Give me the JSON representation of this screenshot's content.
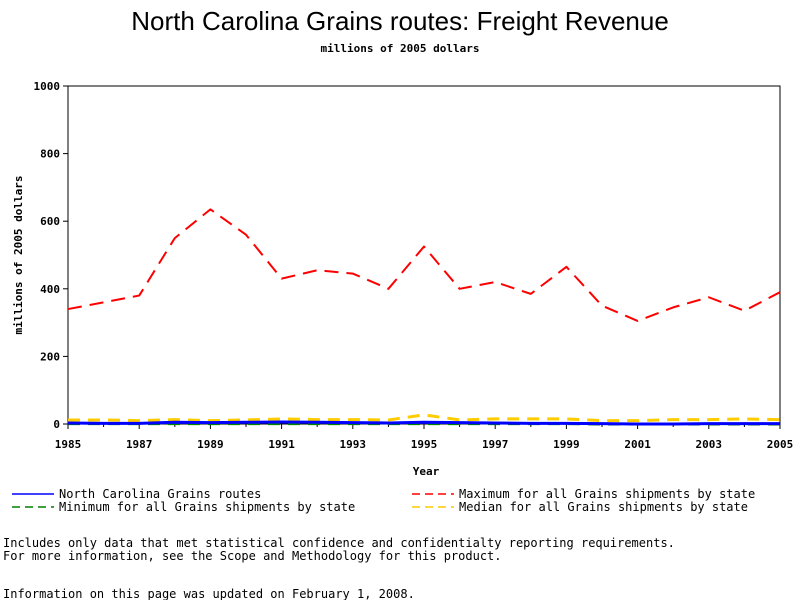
{
  "page": {
    "title": "North Carolina Grains routes: Freight Revenue",
    "subtitle": "millions of 2005 dollars",
    "footnote_line1": "Includes only data that met statistical confidence and confidentialty reporting requirements.",
    "footnote_line2": "For more information, see the Scope and Methodology for this product.",
    "updated": "Information on this page was updated on February 1, 2008."
  },
  "chart_data": {
    "type": "line",
    "title": "North Carolina Grains routes: Freight Revenue",
    "subtitle": "millions of 2005 dollars",
    "xlabel": "Year",
    "ylabel": "millions of 2005 dollars",
    "xlim": [
      1985,
      2005
    ],
    "ylim": [
      0,
      1000
    ],
    "x_ticks": [
      "1985",
      "1987",
      "1989",
      "1991",
      "1993",
      "1995",
      "1997",
      "1999",
      "2001",
      "2003",
      "2005"
    ],
    "y_ticks": [
      "0",
      "200",
      "400",
      "600",
      "800",
      "1000"
    ],
    "grid": false,
    "legend_position": "bottom",
    "x": [
      1985,
      1986,
      1987,
      1988,
      1989,
      1990,
      1991,
      1992,
      1993,
      1994,
      1995,
      1996,
      1997,
      1998,
      1999,
      2000,
      2001,
      2002,
      2003,
      2004,
      2005
    ],
    "series": [
      {
        "name": "North Carolina Grains routes",
        "color": "#0000ff",
        "style": "solid",
        "values": [
          3,
          2,
          2,
          5,
          4,
          5,
          6,
          5,
          4,
          3,
          5,
          4,
          3,
          2,
          2,
          1,
          0,
          0,
          1,
          1,
          1
        ]
      },
      {
        "name": "Maximum for all Grains shipments by state",
        "color": "#ff0000",
        "style": "dashed",
        "values": [
          340,
          360,
          380,
          550,
          635,
          560,
          430,
          455,
          445,
          400,
          525,
          400,
          420,
          385,
          465,
          350,
          305,
          345,
          375,
          335,
          390
        ]
      },
      {
        "name": "Minimum for all Grains shipments by state",
        "color": "#008000",
        "style": "dashed",
        "values": [
          1,
          1,
          1,
          1,
          1,
          1,
          1,
          1,
          1,
          1,
          1,
          1,
          1,
          1,
          1,
          0,
          0,
          0,
          0,
          0,
          0
        ]
      },
      {
        "name": "Median for all Grains shipments by state",
        "color": "#ffcc00",
        "style": "dashed",
        "values": [
          12,
          12,
          10,
          13,
          10,
          12,
          15,
          13,
          13,
          12,
          27,
          12,
          15,
          15,
          15,
          10,
          10,
          13,
          13,
          15,
          13
        ]
      }
    ]
  }
}
